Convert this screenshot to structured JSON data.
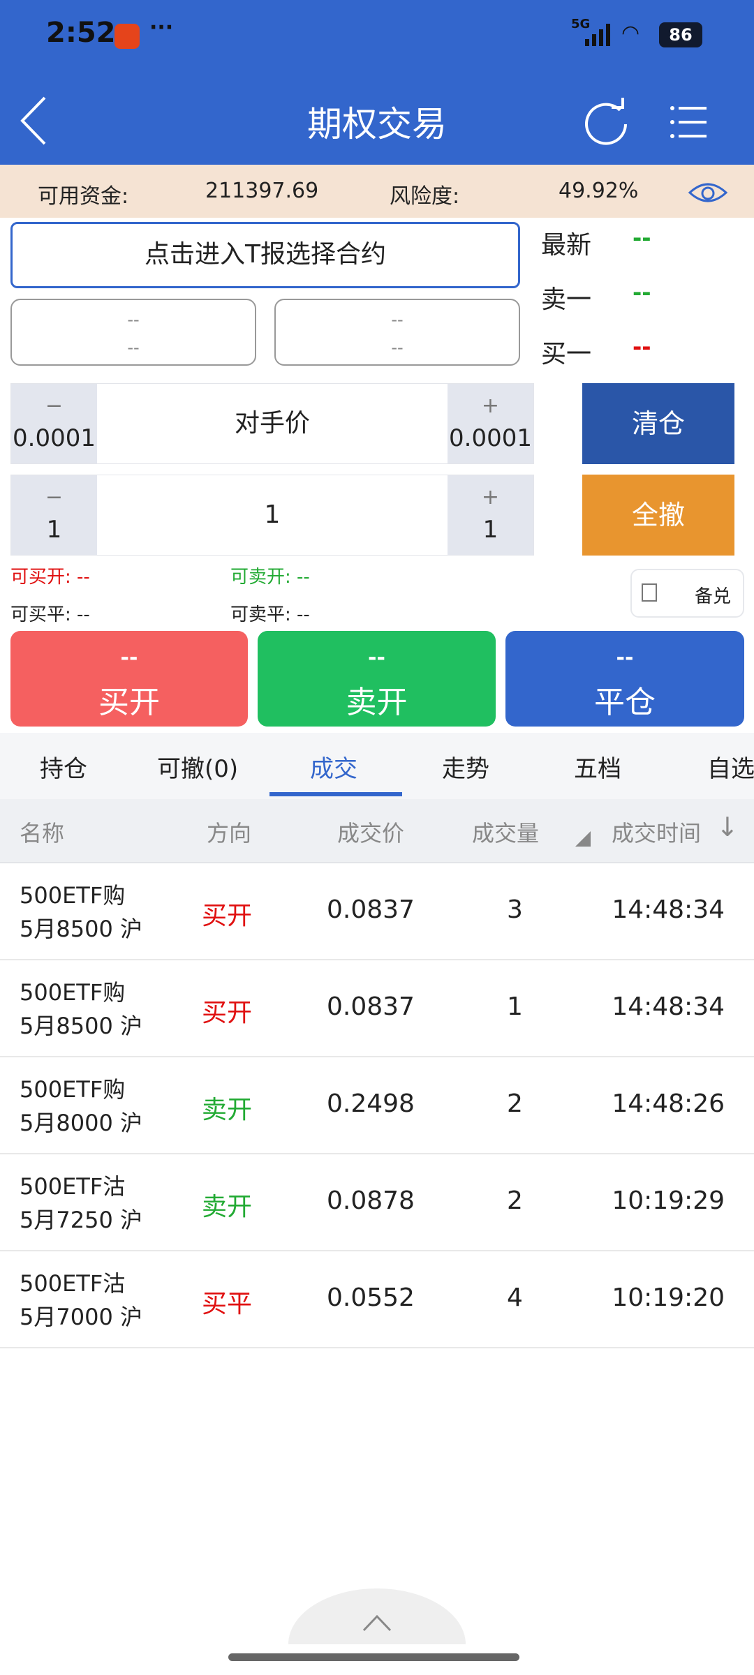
{
  "status": {
    "time": "2:52",
    "network": "5G",
    "battery": "86"
  },
  "header": {
    "title": "期权交易"
  },
  "info": {
    "funds_label": "可用资金:",
    "funds_value": "211397.69",
    "risk_label": "风险度:",
    "risk_value": "49.92%"
  },
  "contract": {
    "select_label": "点击进入T报选择合约",
    "left_box": [
      "--",
      "--"
    ],
    "right_box": [
      "--",
      "--"
    ]
  },
  "quotes": [
    {
      "label": "最新",
      "value": "--",
      "color": "#22aa33"
    },
    {
      "label": "卖一",
      "value": "--",
      "color": "#22aa33"
    },
    {
      "label": "买一",
      "value": "--",
      "color": "#e01010"
    }
  ],
  "price_stepper": {
    "minus": "−",
    "plus": "+",
    "step": "0.0001",
    "value": "对手价"
  },
  "qty_stepper": {
    "minus": "−",
    "plus": "+",
    "step": "1",
    "value": "1"
  },
  "actions": {
    "clear": "清仓",
    "cancel_all": "全撤",
    "covered": "备兑"
  },
  "avail": {
    "buy_open": "可买开: --",
    "sell_open": "可卖开: --",
    "buy_close": "可买平: --",
    "sell_close": "可卖平: --"
  },
  "trade_buttons": [
    {
      "price": "--",
      "label": "买开",
      "color": "#f56060"
    },
    {
      "price": "--",
      "label": "卖开",
      "color": "#20bf60"
    },
    {
      "price": "--",
      "label": "平仓",
      "color": "#3366cc"
    }
  ],
  "tabs": [
    "持仓",
    "可撤(0)",
    "成交",
    "走势",
    "五档",
    "自选"
  ],
  "active_tab": 2,
  "table": {
    "headers": [
      "名称",
      "方向",
      "成交价",
      "成交量",
      "成交时间"
    ],
    "rows": [
      {
        "name1": "500ETF购",
        "name2": "5月8500 沪",
        "dir": "买开",
        "price": "0.0837",
        "qty": "3",
        "time": "14:48:34"
      },
      {
        "name1": "500ETF购",
        "name2": "5月8500 沪",
        "dir": "买开",
        "price": "0.0837",
        "qty": "1",
        "time": "14:48:34"
      },
      {
        "name1": "500ETF购",
        "name2": "5月8000 沪",
        "dir": "卖开",
        "price": "0.2498",
        "qty": "2",
        "time": "14:48:26"
      },
      {
        "name1": "500ETF沽",
        "name2": "5月7250 沪",
        "dir": "卖开",
        "price": "0.0878",
        "qty": "2",
        "time": "10:19:29"
      },
      {
        "name1": "500ETF沽",
        "name2": "5月7000 沪",
        "dir": "买平",
        "price": "0.0552",
        "qty": "4",
        "time": "10:19:20"
      }
    ]
  },
  "colors": {
    "brand": "#3366cc",
    "buy": "#e01010",
    "sell": "#22aa33",
    "clear": "#2a56a8",
    "cancel_all": "#e8952f"
  }
}
